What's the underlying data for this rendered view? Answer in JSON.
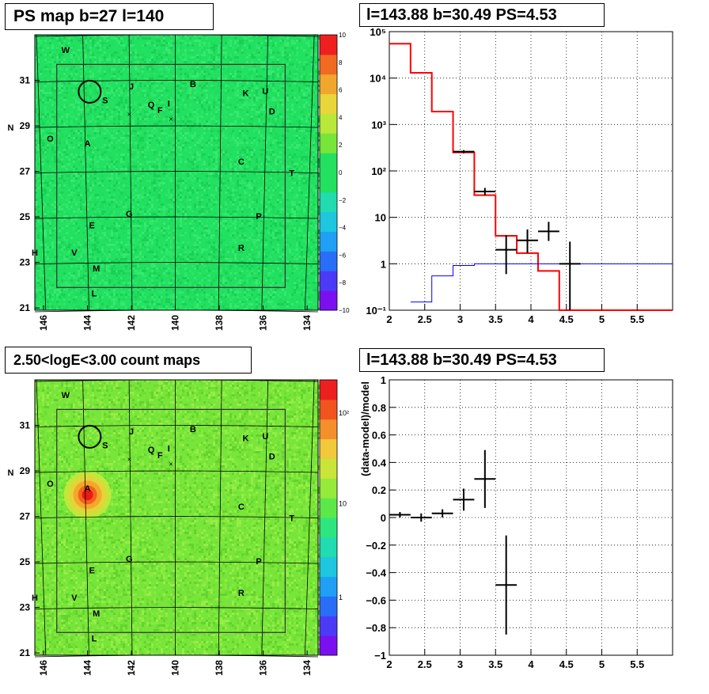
{
  "panels": {
    "ps_map": {
      "title": "PS map b=27 l=140",
      "x_ticks": [
        "146",
        "144",
        "142",
        "140",
        "138",
        "136",
        "134"
      ],
      "y_ticks": [
        "21",
        "23",
        "25",
        "27",
        "29",
        "31"
      ],
      "colorbar_ticks": [
        "10",
        "8",
        "6",
        "4",
        "2",
        "0",
        "−2",
        "−4",
        "−6",
        "−8",
        "−10"
      ],
      "colorbar_range": [
        -10,
        10
      ],
      "background_color": "#22e060"
    },
    "count_map": {
      "title": "2.50<logE<3.00 count maps",
      "x_ticks": [
        "146",
        "144",
        "142",
        "140",
        "138",
        "136",
        "134"
      ],
      "y_ticks": [
        "21",
        "23",
        "25",
        "27",
        "29",
        "31"
      ],
      "colorbar_ticks": [
        "10²",
        "10",
        "1"
      ],
      "colorbar_scale": "log",
      "background_color": "#78e53a"
    }
  },
  "sources": [
    {
      "label": "W",
      "l": 145.0,
      "b": 32.2
    },
    {
      "label": "J",
      "l": 142.0,
      "b": 30.6
    },
    {
      "label": "B",
      "l": 139.2,
      "b": 30.7
    },
    {
      "label": "K",
      "l": 136.8,
      "b": 30.3
    },
    {
      "label": "U",
      "l": 135.9,
      "b": 30.4
    },
    {
      "label": "S",
      "l": 143.2,
      "b": 30.0
    },
    {
      "label": "Q",
      "l": 141.1,
      "b": 29.8
    },
    {
      "label": "I",
      "l": 140.3,
      "b": 29.85
    },
    {
      "label": "F",
      "l": 140.7,
      "b": 29.55
    },
    {
      "label": "D",
      "l": 135.6,
      "b": 29.5
    },
    {
      "label": "N",
      "l": 147.5,
      "b": 28.8
    },
    {
      "label": "O",
      "l": 145.7,
      "b": 28.3
    },
    {
      "label": "A",
      "l": 144.0,
      "b": 28.1
    },
    {
      "label": "C",
      "l": 137.0,
      "b": 27.3
    },
    {
      "label": "T",
      "l": 134.7,
      "b": 26.8
    },
    {
      "label": "G",
      "l": 142.1,
      "b": 25.0
    },
    {
      "label": "P",
      "l": 136.2,
      "b": 24.9
    },
    {
      "label": "E",
      "l": 143.8,
      "b": 24.5
    },
    {
      "label": "R",
      "l": 137.0,
      "b": 23.5
    },
    {
      "label": "H",
      "l": 146.4,
      "b": 23.3
    },
    {
      "label": "V",
      "l": 144.6,
      "b": 23.3
    },
    {
      "label": "M",
      "l": 143.6,
      "b": 22.6
    },
    {
      "label": "L",
      "l": 143.7,
      "b": 21.5
    }
  ],
  "target_circle": {
    "l": 143.9,
    "b": 30.5
  },
  "chart_data": [
    {
      "type": "histogram",
      "title": "l=143.88 b=30.49 PS=4.53",
      "xlabel": "",
      "ylabel": "",
      "xlim": [
        2,
        6
      ],
      "ylim": [
        0.1,
        100000
      ],
      "yscale": "log",
      "x_tick_labels": [
        "2",
        "2.5",
        "3",
        "3.5",
        "4",
        "4.5",
        "5",
        "5.5"
      ],
      "y_tick_labels": [
        "10⁻¹",
        "1",
        "10",
        "10²",
        "10³",
        "10⁴",
        "10⁵"
      ],
      "grid": true,
      "series": [
        {
          "color": "#ff0000",
          "edges": [
            2.0,
            2.3,
            2.6,
            2.9,
            3.2,
            3.5,
            3.8,
            4.1,
            4.4,
            6.0
          ],
          "values": [
            55000,
            13000,
            1900,
            250,
            30,
            4,
            1.7,
            0.7,
            0.1
          ]
        },
        {
          "color": "#0000ff",
          "edges": [
            2.3,
            2.6,
            2.9,
            3.2,
            3.5,
            3.8,
            4.1,
            4.4,
            6.0
          ],
          "values": [
            0.15,
            0.55,
            0.92,
            1.0,
            1.0,
            1.0,
            1.0,
            1.0
          ]
        },
        {
          "color": "#000000",
          "errorbars": true,
          "points": [
            {
              "x": 3.05,
              "y": 260,
              "xerr": 0.15,
              "ylo": 240,
              "yhi": 280
            },
            {
              "x": 3.35,
              "y": 36,
              "xerr": 0.15,
              "ylo": 30,
              "yhi": 43
            },
            {
              "x": 3.65,
              "y": 2.0,
              "xerr": 0.15,
              "ylo": 0.6,
              "yhi": 4.1
            },
            {
              "x": 3.95,
              "y": 3.2,
              "xerr": 0.15,
              "ylo": 1.7,
              "yhi": 5.5
            },
            {
              "x": 4.25,
              "y": 5.0,
              "xerr": 0.15,
              "ylo": 3.1,
              "yhi": 8.0
            },
            {
              "x": 4.55,
              "y": 1.0,
              "xerr": 0.15,
              "ylo": 0.1,
              "yhi": 3.0
            }
          ]
        }
      ]
    },
    {
      "type": "scatter",
      "title": "l=143.88 b=30.49 PS=4.53",
      "xlabel": "",
      "ylabel": "(data-model)/model",
      "xlim": [
        2,
        6
      ],
      "ylim": [
        -1,
        1
      ],
      "x_tick_labels": [
        "2",
        "2.5",
        "3",
        "3.5",
        "4",
        "4.5",
        "5",
        "5.5"
      ],
      "y_tick_labels": [
        "−1",
        "−0.8",
        "−0.6",
        "−0.4",
        "−0.2",
        "0",
        "0.2",
        "0.4",
        "0.6",
        "0.8",
        "1"
      ],
      "grid": true,
      "points": [
        {
          "x": 2.15,
          "y": 0.02,
          "xerr": 0.15,
          "yerr": 0.02
        },
        {
          "x": 2.45,
          "y": 0.0,
          "xerr": 0.15,
          "yerr": 0.03
        },
        {
          "x": 2.75,
          "y": 0.03,
          "xerr": 0.15,
          "yerr": 0.03
        },
        {
          "x": 3.05,
          "y": 0.13,
          "xerr": 0.15,
          "yerr": 0.08
        },
        {
          "x": 3.35,
          "y": 0.28,
          "xerr": 0.15,
          "yerr": 0.21
        },
        {
          "x": 3.65,
          "y": -0.49,
          "xerr": 0.15,
          "yerr": 0.36
        }
      ]
    }
  ]
}
